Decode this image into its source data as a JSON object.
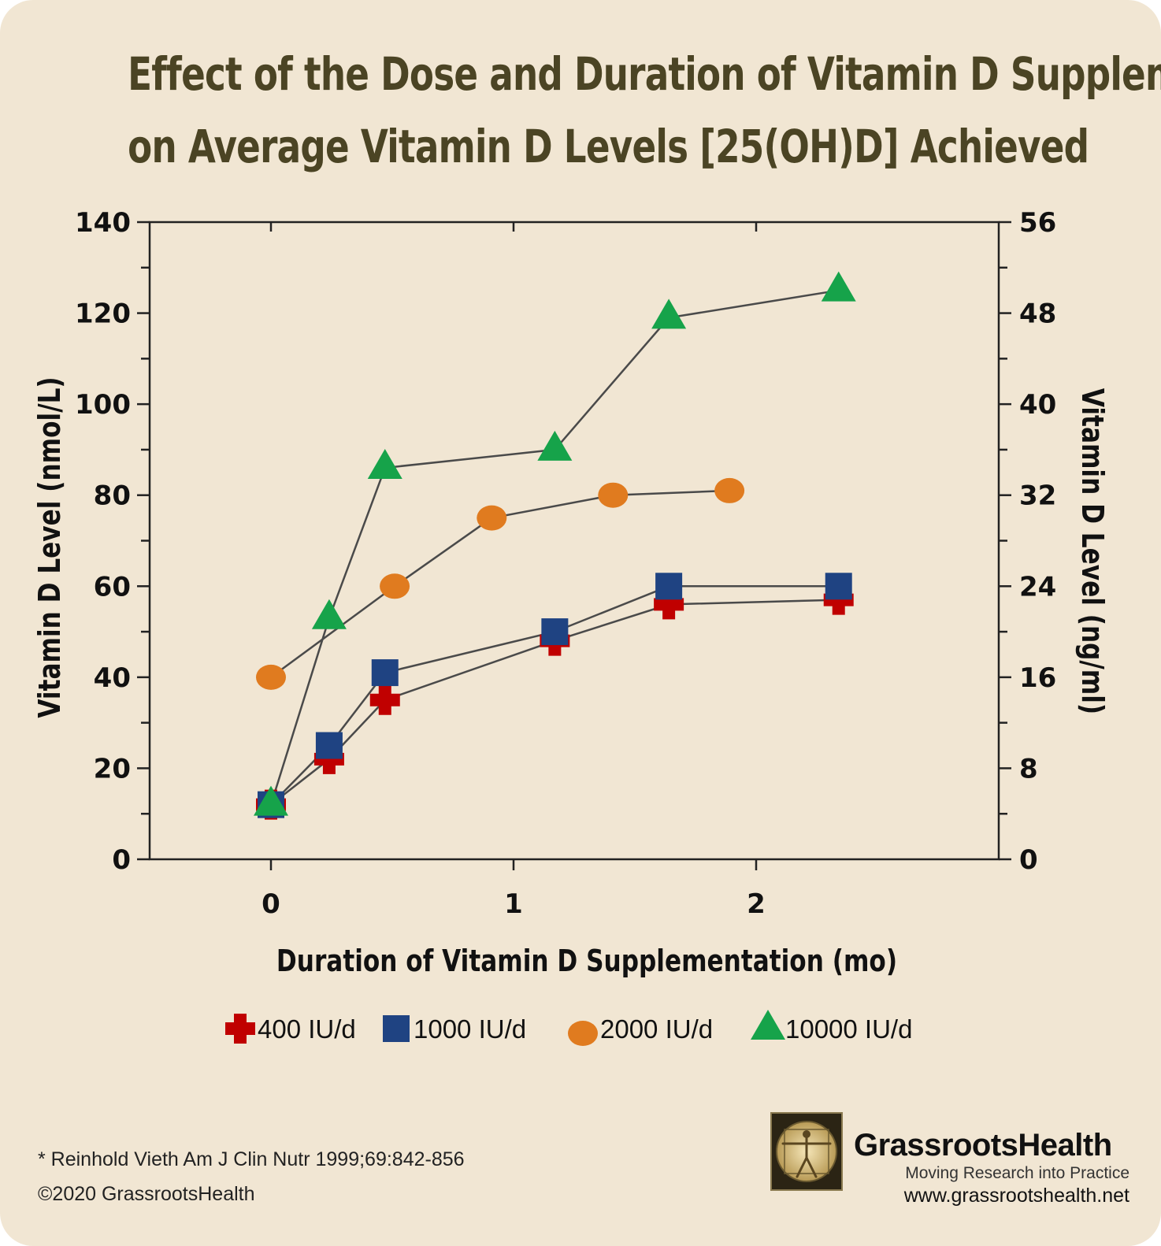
{
  "title_lines": [
    "Effect of the Dose and Duration of Vitamin D Supplementation",
    "on Average Vitamin D Levels [25(OH)D] Achieved"
  ],
  "chart_data": {
    "type": "line",
    "title": "Effect of the Dose and Duration of Vitamin D Supplementation on Average Vitamin D Levels [25(OH)D] Achieved",
    "xlabel": "Duration of Vitamin D Supplementation (mo)",
    "ylabel": "Vitamin D Level (nmol/L)",
    "y2label": "Vitamin D Level (ng/ml)",
    "xlim": [
      -0.5,
      3.0
    ],
    "ylim": [
      0,
      140
    ],
    "y2lim": [
      0,
      56
    ],
    "xticks": [
      0,
      1,
      2
    ],
    "yticks": [
      0,
      20,
      40,
      60,
      80,
      100,
      120,
      140
    ],
    "y2ticks": [
      0,
      8,
      16,
      24,
      32,
      40,
      48,
      56
    ],
    "grid": false,
    "legend_position": "bottom",
    "series": [
      {
        "name": "400 IU/d",
        "marker": "cross",
        "color": "#c00000",
        "points": [
          [
            0.0,
            12
          ],
          [
            0.24,
            22
          ],
          [
            0.47,
            35
          ],
          [
            1.17,
            48
          ],
          [
            1.64,
            56
          ],
          [
            2.34,
            57
          ]
        ]
      },
      {
        "name": "1000 IU/d",
        "marker": "square",
        "color": "#1f4382",
        "points": [
          [
            0.0,
            12
          ],
          [
            0.24,
            25
          ],
          [
            0.47,
            41
          ],
          [
            1.17,
            50
          ],
          [
            1.64,
            60
          ],
          [
            2.34,
            60
          ]
        ]
      },
      {
        "name": "2000 IU/d",
        "marker": "circle",
        "color": "#e07b1f",
        "points": [
          [
            0.0,
            40
          ],
          [
            0.51,
            60
          ],
          [
            0.91,
            75
          ],
          [
            1.41,
            80
          ],
          [
            1.89,
            81
          ]
        ]
      },
      {
        "name": "10000 IU/d",
        "marker": "triangle",
        "color": "#16a34a",
        "points": [
          [
            0.0,
            12
          ],
          [
            0.24,
            53
          ],
          [
            0.47,
            86
          ],
          [
            1.17,
            90
          ],
          [
            1.64,
            119
          ],
          [
            2.34,
            125
          ]
        ]
      }
    ]
  },
  "footnote": "* Reinhold Vieth Am J Clin Nutr 1999;69:842-856",
  "copyright": "©2020 GrassrootsHealth",
  "logo": {
    "name": "GrassrootsHealth",
    "tagline": "Moving Research into Practice",
    "url": "www.grassrootshealth.net"
  }
}
